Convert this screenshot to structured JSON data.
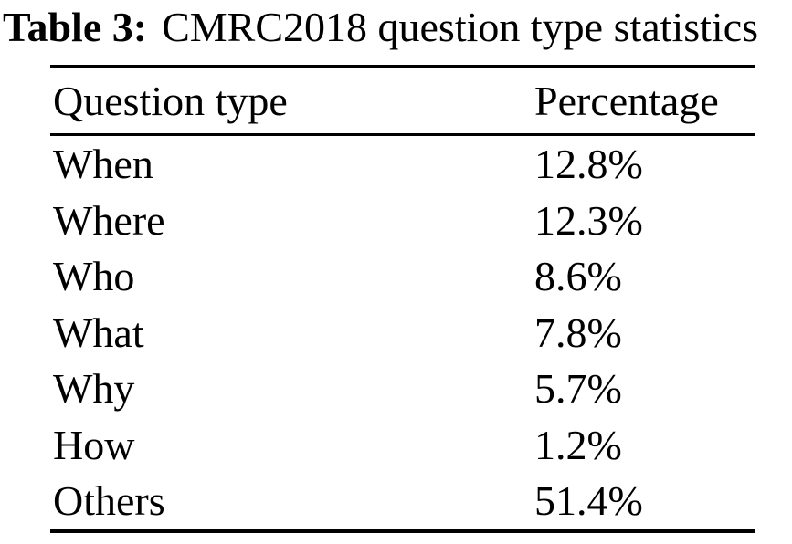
{
  "caption": {
    "label": "Table 3:",
    "text": "CMRC2018 question type statistics"
  },
  "table": {
    "columns": [
      "Question type",
      "Percentage"
    ],
    "rows": [
      {
        "type": "When",
        "percentage": "12.8%"
      },
      {
        "type": "Where",
        "percentage": "12.3%"
      },
      {
        "type": "Who",
        "percentage": "8.6%"
      },
      {
        "type": "What",
        "percentage": "7.8%"
      },
      {
        "type": "Why",
        "percentage": "5.7%"
      },
      {
        "type": "How",
        "percentage": "1.2%"
      },
      {
        "type": "Others",
        "percentage": "51.4%"
      }
    ]
  },
  "colors": {
    "text": "#000000",
    "background": "#ffffff",
    "rule": "#000000"
  },
  "chart_data": {
    "type": "table",
    "title": "Table 3: CMRC2018 question type statistics",
    "columns": [
      "Question type",
      "Percentage"
    ],
    "categories": [
      "When",
      "Where",
      "Who",
      "What",
      "Why",
      "How",
      "Others"
    ],
    "values": [
      12.8,
      12.3,
      8.6,
      7.8,
      5.7,
      1.2,
      51.4
    ],
    "unit": "%"
  }
}
